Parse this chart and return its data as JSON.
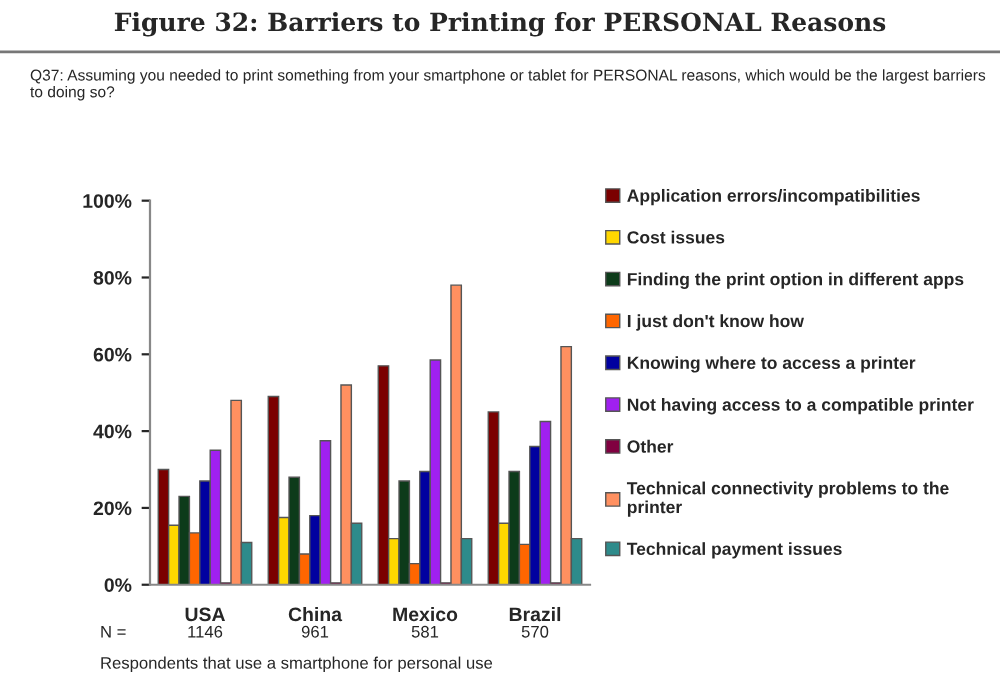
{
  "chart_data": {
    "type": "bar",
    "title": "Figure 32: Barriers to Printing for PERSONAL Reasons",
    "subtitle": "Q37: Assuming you needed to print something from your smartphone or tablet for PERSONAL reasons, which would be the largest barriers to doing so?",
    "categories": [
      "USA",
      "China",
      "Mexico",
      "Brazil"
    ],
    "series": [
      {
        "name": "Application errors/incompatibilities",
        "color": "#7b0000",
        "values": [
          30,
          49,
          57,
          45
        ]
      },
      {
        "name": "Cost issues",
        "color": "#ffd700",
        "values": [
          15.5,
          17.5,
          12,
          16
        ]
      },
      {
        "name": "Finding the print option in different apps",
        "color": "#0d3b1a",
        "values": [
          23,
          28,
          27,
          29.5
        ]
      },
      {
        "name": "I just don't know how",
        "color": "#ff6600",
        "values": [
          13.5,
          8,
          5.5,
          10.5
        ]
      },
      {
        "name": "Knowing where to access a printer",
        "color": "#0000a0",
        "values": [
          27,
          18,
          29.5,
          36
        ]
      },
      {
        "name": "Not having access to a compatible printer",
        "color": "#a020f0",
        "values": [
          35,
          37.5,
          58.5,
          42.5
        ]
      },
      {
        "name": "Other",
        "color": "#800040",
        "values": [
          0.5,
          0.5,
          0.5,
          0.5
        ]
      },
      {
        "name": "Technical connectivity problems to the printer",
        "color": "#ff9060",
        "values": [
          48,
          52,
          78,
          62
        ]
      },
      {
        "name": "Technical payment issues",
        "color": "#2e8b8b",
        "values": [
          11,
          16,
          12,
          12
        ]
      }
    ],
    "ylim": [
      0,
      100
    ],
    "yticks": [
      {
        "value": 0,
        "label": "0%"
      },
      {
        "value": 20,
        "label": "20%"
      },
      {
        "value": 40,
        "label": "40%"
      },
      {
        "value": 60,
        "label": "60%"
      },
      {
        "value": 80,
        "label": "80%"
      },
      {
        "value": 100,
        "label": "100%"
      }
    ],
    "grid": false,
    "legend": "right",
    "annotations": [
      "N =",
      "1146",
      "961",
      "581",
      "570",
      "Respondents that use a smartphone for personal use"
    ]
  }
}
